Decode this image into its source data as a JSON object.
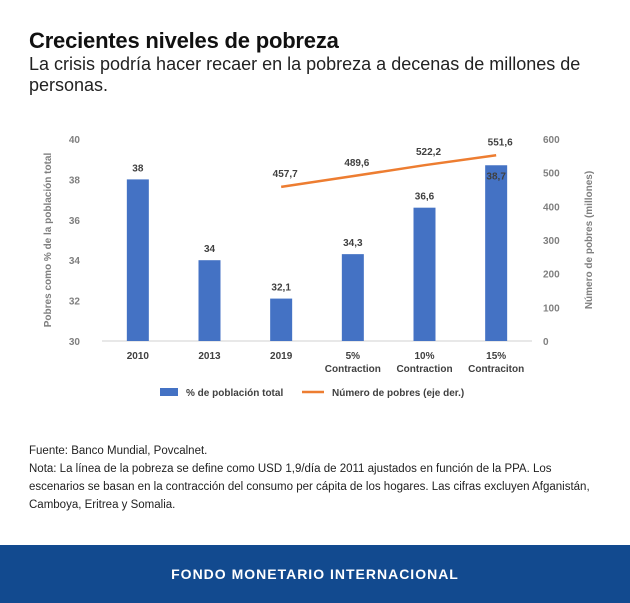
{
  "header": {
    "title": "Crecientes niveles de pobreza",
    "subtitle": "La crisis podría hacer recaer en la pobreza a decenas de millones de personas."
  },
  "chart_data": {
    "type": "bar",
    "categories": [
      [
        "2010"
      ],
      [
        "2013"
      ],
      [
        "2019"
      ],
      [
        "5%",
        "Contraction"
      ],
      [
        "10%",
        "Contraction"
      ],
      [
        "15%",
        "Contraciton"
      ]
    ],
    "series": [
      {
        "name": "% de población total",
        "type": "bar",
        "axis": "left",
        "color": "#4472c4",
        "values": [
          38,
          34,
          32.1,
          34.3,
          36.6,
          38.7
        ],
        "labels": [
          "38",
          "34",
          "32,1",
          "34,3",
          "36,6",
          "38,7"
        ]
      },
      {
        "name": "Número de pobres (eje der.)",
        "type": "line",
        "axis": "right",
        "color": "#ed7d31",
        "values": [
          null,
          null,
          457.7,
          489.6,
          522.2,
          551.6
        ],
        "labels": [
          "",
          "",
          "457,7",
          "489,6",
          "522,2",
          "551,6"
        ]
      }
    ],
    "ylabel_left": "Pobres como % de la población total",
    "ylabel_right": "Número de pobres (millones)",
    "ylim_left": [
      30,
      40
    ],
    "yticks_left": [
      30,
      32,
      34,
      36,
      38,
      40
    ],
    "ylim_right": [
      0,
      600
    ],
    "yticks_right": [
      0,
      100,
      200,
      300,
      400,
      500,
      600
    ],
    "grid": false,
    "legend_position": "bottom"
  },
  "notes": {
    "source": "Fuente: Banco Mundial, Povcalnet.",
    "note": "Nota: La línea de la pobreza se define como USD 1,9/día de 2011 ajustados en función de la PPA. Los escenarios se basan en la contracción del consumo per cápita de los hogares. Las cifras excluyen Afganistán, Camboya, Eritrea y Somalia."
  },
  "footer": {
    "label": "FONDO MONETARIO INTERNACIONAL",
    "background": "#124a8f"
  }
}
